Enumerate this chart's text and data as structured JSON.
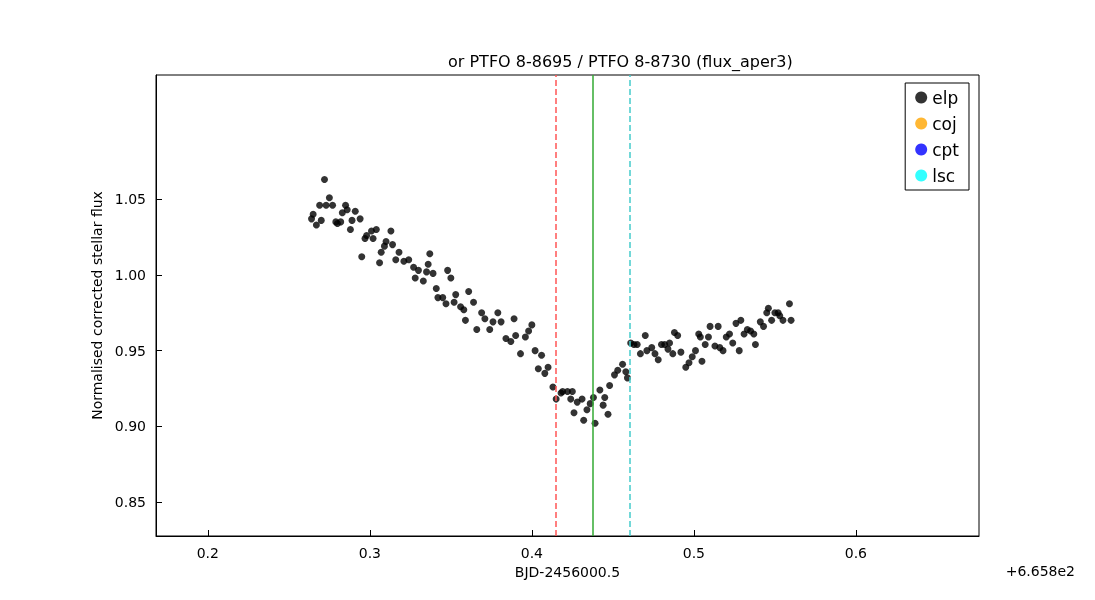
{
  "chart_data": {
    "type": "scatter",
    "title": "or PTFO 8-8695 / PTFO 8-8730 (flux_aper3)",
    "xlabel": "BJD-2456000.5",
    "ylabel": "Normalised corrected stellar flux",
    "annotations": [
      "+6.658e2"
    ],
    "xlim": [
      0.168,
      0.676
    ],
    "ylim": [
      0.8276,
      1.132
    ],
    "xticks": [
      0.2,
      0.3,
      0.4,
      0.5,
      0.6
    ],
    "yticks": [
      0.85,
      {
        "value": 0.9,
        "label": "0.90"
      },
      0.95,
      {
        "value": 1,
        "label": "1.00"
      },
      1.05
    ],
    "grid": false,
    "legend": "top right",
    "marker": "circle",
    "series": [
      {
        "name": "elp",
        "color": "#000000",
        "x": [
          0.264,
          0.265,
          0.267,
          0.269,
          0.27,
          0.272,
          0.273,
          0.275,
          0.277,
          0.279,
          0.28,
          0.282,
          0.283,
          0.285,
          0.286,
          0.288,
          0.289,
          0.291,
          0.294,
          0.295,
          0.297,
          0.298,
          0.301,
          0.302,
          0.304,
          0.306,
          0.307,
          0.309,
          0.31,
          0.313,
          0.314,
          0.316,
          0.318,
          0.321,
          0.324,
          0.327,
          0.328,
          0.33,
          0.333,
          0.335,
          0.336,
          0.337,
          0.339,
          0.341,
          0.342,
          0.345,
          0.347,
          0.348,
          0.35,
          0.352,
          0.353,
          0.356,
          0.358,
          0.359,
          0.361,
          0.364,
          0.366,
          0.369,
          0.371,
          0.374,
          0.376,
          0.379,
          0.381,
          0.384,
          0.387,
          0.389,
          0.39,
          0.393,
          0.396,
          0.398,
          0.4,
          0.402,
          0.404,
          0.406,
          0.408,
          0.41,
          0.413,
          0.415,
          0.418,
          0.419,
          0.422,
          0.424,
          0.425,
          0.426,
          0.428,
          0.431,
          0.432,
          0.434,
          0.436,
          0.438,
          0.439,
          0.442,
          0.444,
          0.445,
          0.447,
          0.448,
          0.451,
          0.453,
          0.456,
          0.458,
          0.459,
          0.461,
          0.463,
          0.465,
          0.467,
          0.47,
          0.471,
          0.474,
          0.476,
          0.478,
          0.48,
          0.482,
          0.484,
          0.485,
          0.487,
          0.488,
          0.49,
          0.492,
          0.495,
          0.497,
          0.499,
          0.501,
          0.503,
          0.504,
          0.505,
          0.507,
          0.509,
          0.51,
          0.513,
          0.515,
          0.516,
          0.518,
          0.52,
          0.522,
          0.524,
          0.526,
          0.528,
          0.529,
          0.531,
          0.533,
          0.535,
          0.537,
          0.538,
          0.541,
          0.543,
          0.545,
          0.546,
          0.548,
          0.55,
          0.552,
          0.553,
          0.555,
          0.559,
          0.56
        ],
        "values": [
          1.037,
          1.04,
          1.033,
          1.046,
          1.036,
          1.063,
          1.046,
          1.051,
          1.046,
          1.035,
          1.034,
          1.035,
          1.041,
          1.046,
          1.043,
          1.03,
          1.036,
          1.042,
          1.037,
          1.012,
          1.024,
          1.026,
          1.029,
          1.024,
          1.03,
          1.008,
          1.015,
          1.019,
          1.022,
          1.029,
          1.02,
          1.01,
          1.015,
          1.009,
          1.01,
          1.005,
          0.998,
          1.003,
          0.996,
          1.002,
          1.007,
          1.014,
          1.001,
          0.991,
          0.985,
          0.985,
          0.981,
          1.003,
          0.998,
          0.982,
          0.987,
          0.979,
          0.977,
          0.97,
          0.989,
          0.982,
          0.964,
          0.975,
          0.971,
          0.964,
          0.969,
          0.975,
          0.969,
          0.958,
          0.956,
          0.971,
          0.96,
          0.948,
          0.959,
          0.963,
          0.967,
          0.95,
          0.938,
          0.947,
          0.935,
          0.939,
          0.926,
          0.918,
          0.922,
          0.923,
          0.923,
          0.918,
          0.923,
          0.909,
          0.916,
          0.918,
          0.904,
          0.911,
          0.915,
          0.919,
          0.902,
          0.924,
          0.914,
          0.919,
          0.908,
          0.927,
          0.934,
          0.937,
          0.941,
          0.936,
          0.932,
          0.955,
          0.954,
          0.954,
          0.948,
          0.96,
          0.95,
          0.952,
          0.948,
          0.944,
          0.954,
          0.954,
          0.951,
          0.955,
          0.948,
          0.962,
          0.96,
          0.949,
          0.939,
          0.942,
          0.946,
          0.95,
          0.961,
          0.959,
          0.943,
          0.954,
          0.959,
          0.966,
          0.953,
          0.966,
          0.952,
          0.95,
          0.959,
          0.961,
          0.955,
          0.968,
          0.95,
          0.97,
          0.961,
          0.964,
          0.963,
          0.961,
          0.954,
          0.969,
          0.966,
          0.975,
          0.978,
          0.97,
          0.975,
          0.975,
          0.973,
          0.97,
          0.981,
          0.97
        ]
      },
      {
        "name": "coj",
        "color": "#ffa500"
      },
      {
        "name": "cpt",
        "color": "#0000ff"
      },
      {
        "name": "lsc",
        "color": "#00ffff"
      }
    ],
    "ref_lines": [
      {
        "axis": "x",
        "value": 0.4145,
        "color": "#ff5555",
        "line_style": "dashed"
      },
      {
        "axis": "x",
        "value": 0.4376,
        "color": "#33aa33",
        "line_style": "solid"
      },
      {
        "axis": "x",
        "value": 0.4606,
        "color": "#44cccc",
        "line_style": "dashed"
      }
    ]
  }
}
